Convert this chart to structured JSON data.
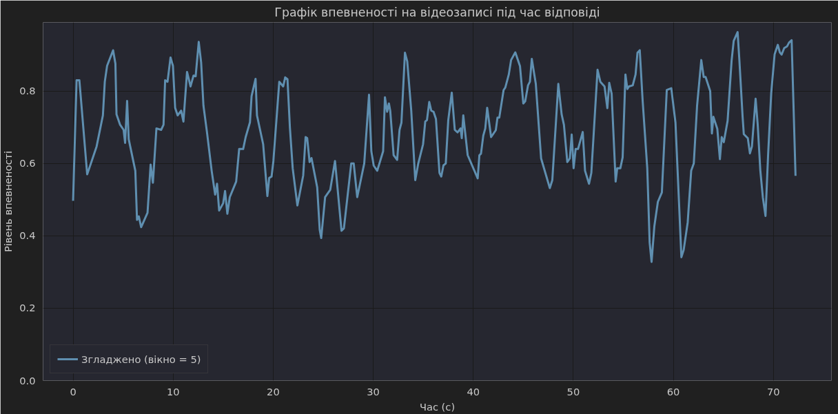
{
  "chart_data": {
    "type": "line",
    "title": "Графік впевненості на відеозаписі під час відповіді",
    "xlabel": "Час (с)",
    "ylabel": "Рівень впевненості",
    "xlim": [
      -3,
      75.8
    ],
    "ylim": [
      0,
      0.99
    ],
    "xticks": [
      0,
      10,
      20,
      30,
      40,
      50,
      60,
      70
    ],
    "yticks": [
      {
        "value": 0,
        "label": "0.0"
      },
      0.2,
      0.4,
      0.6,
      0.8
    ],
    "grid": true,
    "legend": "bottom left",
    "line_style": "solid",
    "series": [
      {
        "name": "Згладжено (вікно = 5)",
        "color": "#5f8fb0",
        "x": [
          0,
          0.35,
          0.63,
          1.41,
          2.35,
          2.98,
          3.17,
          3.4,
          4.0,
          4.23,
          4.34,
          4.7,
          5.05,
          5.2,
          5.4,
          5.56,
          6.22,
          6.39,
          6.57,
          6.8,
          7.44,
          7.75,
          7.98,
          8.33,
          8.8,
          9.04,
          9.2,
          9.44,
          9.74,
          9.98,
          10.2,
          10.45,
          10.8,
          11.03,
          11.39,
          11.74,
          12.04,
          12.25,
          12.56,
          12.8,
          13.03,
          13.38,
          13.85,
          14.2,
          14.39,
          14.6,
          15.0,
          15.19,
          15.42,
          15.66,
          16.3,
          16.6,
          17.0,
          17.25,
          17.68,
          17.84,
          18.24,
          18.38,
          19.0,
          19.42,
          19.6,
          19.84,
          20.02,
          20.61,
          21.0,
          21.2,
          21.43,
          21.67,
          21.95,
          22.42,
          23.0,
          23.24,
          23.4,
          23.64,
          23.83,
          24.4,
          24.65,
          24.8,
          25.19,
          25.7,
          26.18,
          26.83,
          27.07,
          27.8,
          28.05,
          28.4,
          29.1,
          29.58,
          29.81,
          30.05,
          30.4,
          30.99,
          31.17,
          31.39,
          31.57,
          31.7,
          32.04,
          32.39,
          32.63,
          32.82,
          33.17,
          33.4,
          33.8,
          34.2,
          34.5,
          34.98,
          35.2,
          35.37,
          35.6,
          35.8,
          36.03,
          36.27,
          36.62,
          36.8,
          37.02,
          37.25,
          37.5,
          37.85,
          38.15,
          38.43,
          38.73,
          38.85,
          39.0,
          39.44,
          40.44,
          40.61,
          40.77,
          41.0,
          41.2,
          41.39,
          41.78,
          42.25,
          42.42,
          42.6,
          43.03,
          43.2,
          43.55,
          43.78,
          44.2,
          44.67,
          45.0,
          45.19,
          45.47,
          45.66,
          45.85,
          46.25,
          46.78,
          47.65,
          47.9,
          48.5,
          48.83,
          49.06,
          49.4,
          49.65,
          49.84,
          50.03,
          50.23,
          50.47,
          50.94,
          51.17,
          51.57,
          51.8,
          52.42,
          52.7,
          53.12,
          53.4,
          53.59,
          53.83,
          54.23,
          54.39,
          54.7,
          54.93,
          55.21,
          55.4,
          55.56,
          55.94,
          56.22,
          56.41,
          56.64,
          56.93,
          57.39,
          57.63,
          57.82,
          58.1,
          58.45,
          58.85,
          59.34,
          59.79,
          60.21,
          60.56,
          60.8,
          61.03,
          61.43,
          61.78,
          62.04,
          62.37,
          62.79,
          63.03,
          63.22,
          63.68,
          63.85,
          64.0,
          64.39,
          64.65,
          64.83,
          65.04,
          65.42,
          65.82,
          66.03,
          66.42,
          66.6,
          66.92,
          67.04,
          67.44,
          67.65,
          67.85,
          68.22,
          68.43,
          68.69,
          68.94,
          69.21,
          69.47,
          69.78,
          70.12,
          70.44,
          70.64,
          70.82,
          71.08,
          71.37,
          71.56,
          71.82,
          72.21
        ],
        "values": [
          0.497,
          0.83,
          0.83,
          0.57,
          0.647,
          0.733,
          0.826,
          0.87,
          0.913,
          0.876,
          0.736,
          0.707,
          0.693,
          0.657,
          0.773,
          0.667,
          0.58,
          0.444,
          0.454,
          0.424,
          0.464,
          0.597,
          0.547,
          0.697,
          0.693,
          0.707,
          0.83,
          0.826,
          0.893,
          0.87,
          0.754,
          0.733,
          0.746,
          0.716,
          0.853,
          0.813,
          0.843,
          0.841,
          0.936,
          0.879,
          0.76,
          0.687,
          0.58,
          0.514,
          0.544,
          0.47,
          0.49,
          0.524,
          0.461,
          0.507,
          0.55,
          0.64,
          0.64,
          0.673,
          0.714,
          0.786,
          0.834,
          0.733,
          0.653,
          0.51,
          0.56,
          0.564,
          0.607,
          0.826,
          0.813,
          0.838,
          0.833,
          0.7,
          0.587,
          0.484,
          0.567,
          0.673,
          0.67,
          0.604,
          0.615,
          0.534,
          0.417,
          0.394,
          0.507,
          0.527,
          0.607,
          0.414,
          0.421,
          0.6,
          0.6,
          0.507,
          0.6,
          0.79,
          0.634,
          0.594,
          0.58,
          0.634,
          0.783,
          0.743,
          0.766,
          0.746,
          0.623,
          0.61,
          0.693,
          0.713,
          0.906,
          0.882,
          0.746,
          0.554,
          0.6,
          0.653,
          0.716,
          0.72,
          0.77,
          0.746,
          0.743,
          0.723,
          0.574,
          0.564,
          0.595,
          0.6,
          0.72,
          0.796,
          0.693,
          0.686,
          0.697,
          0.67,
          0.733,
          0.623,
          0.559,
          0.623,
          0.627,
          0.677,
          0.697,
          0.754,
          0.673,
          0.692,
          0.727,
          0.727,
          0.803,
          0.81,
          0.846,
          0.886,
          0.907,
          0.869,
          0.766,
          0.772,
          0.816,
          0.826,
          0.889,
          0.82,
          0.614,
          0.532,
          0.554,
          0.82,
          0.736,
          0.707,
          0.604,
          0.614,
          0.68,
          0.587,
          0.64,
          0.64,
          0.687,
          0.58,
          0.544,
          0.574,
          0.859,
          0.826,
          0.813,
          0.753,
          0.823,
          0.793,
          0.55,
          0.587,
          0.587,
          0.617,
          0.846,
          0.806,
          0.813,
          0.816,
          0.846,
          0.906,
          0.913,
          0.773,
          0.587,
          0.381,
          0.328,
          0.427,
          0.494,
          0.52,
          0.803,
          0.808,
          0.713,
          0.494,
          0.341,
          0.361,
          0.437,
          0.58,
          0.6,
          0.76,
          0.886,
          0.839,
          0.839,
          0.8,
          0.683,
          0.729,
          0.696,
          0.612,
          0.673,
          0.659,
          0.718,
          0.884,
          0.939,
          0.963,
          0.884,
          0.729,
          0.681,
          0.67,
          0.628,
          0.647,
          0.779,
          0.707,
          0.581,
          0.507,
          0.455,
          0.625,
          0.795,
          0.902,
          0.928,
          0.907,
          0.901,
          0.919,
          0.924,
          0.934,
          0.941,
          0.566
        ]
      }
    ]
  }
}
